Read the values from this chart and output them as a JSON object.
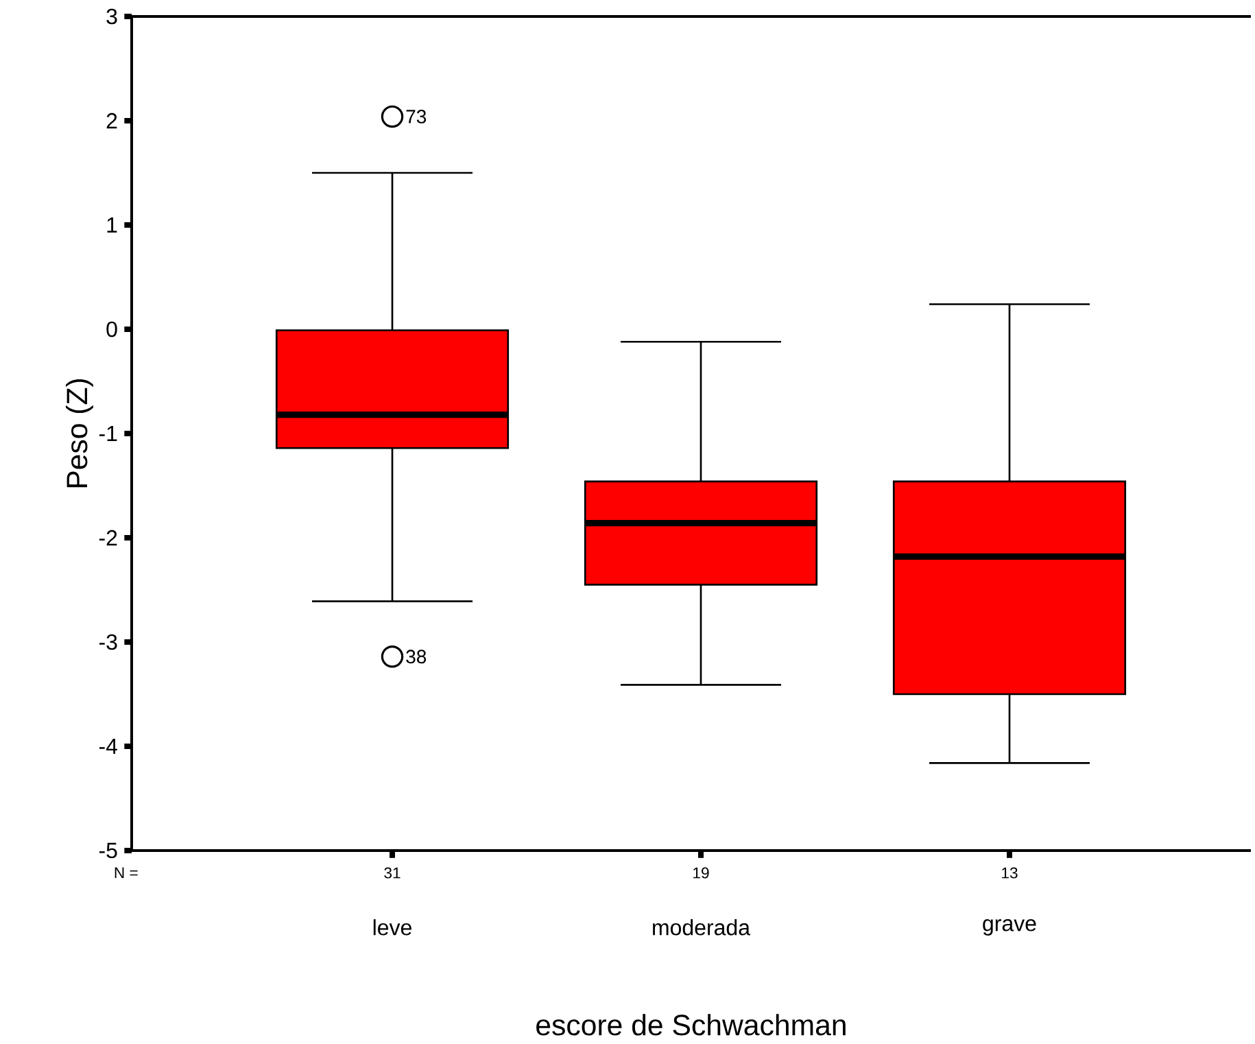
{
  "chart_data": {
    "type": "box",
    "xlabel": "escore de Schwachman",
    "ylabel": "Peso (Z)",
    "categories": [
      "leve",
      "moderada",
      "grave"
    ],
    "color": "#ff0000",
    "boxes": [
      {
        "low": -2.61,
        "q1": -1.14,
        "median": -0.82,
        "q3": -0.01,
        "high": 1.5,
        "outliers": [
          2.04,
          -3.14
        ]
      },
      {
        "low": -3.41,
        "q1": -2.45,
        "median": -1.86,
        "q3": -1.46,
        "high": -0.12
      },
      {
        "low": -4.16,
        "q1": -3.5,
        "median": -2.18,
        "q3": -1.46,
        "high": 0.24
      }
    ],
    "marker": "circle",
    "ylim": [
      -5,
      3
    ],
    "yticks": [
      -5,
      -4,
      -3,
      -2,
      -1,
      0,
      1,
      2,
      3
    ],
    "grid": false,
    "annotations": [
      "N =",
      "31",
      "19",
      "13",
      "73",
      "38"
    ]
  }
}
